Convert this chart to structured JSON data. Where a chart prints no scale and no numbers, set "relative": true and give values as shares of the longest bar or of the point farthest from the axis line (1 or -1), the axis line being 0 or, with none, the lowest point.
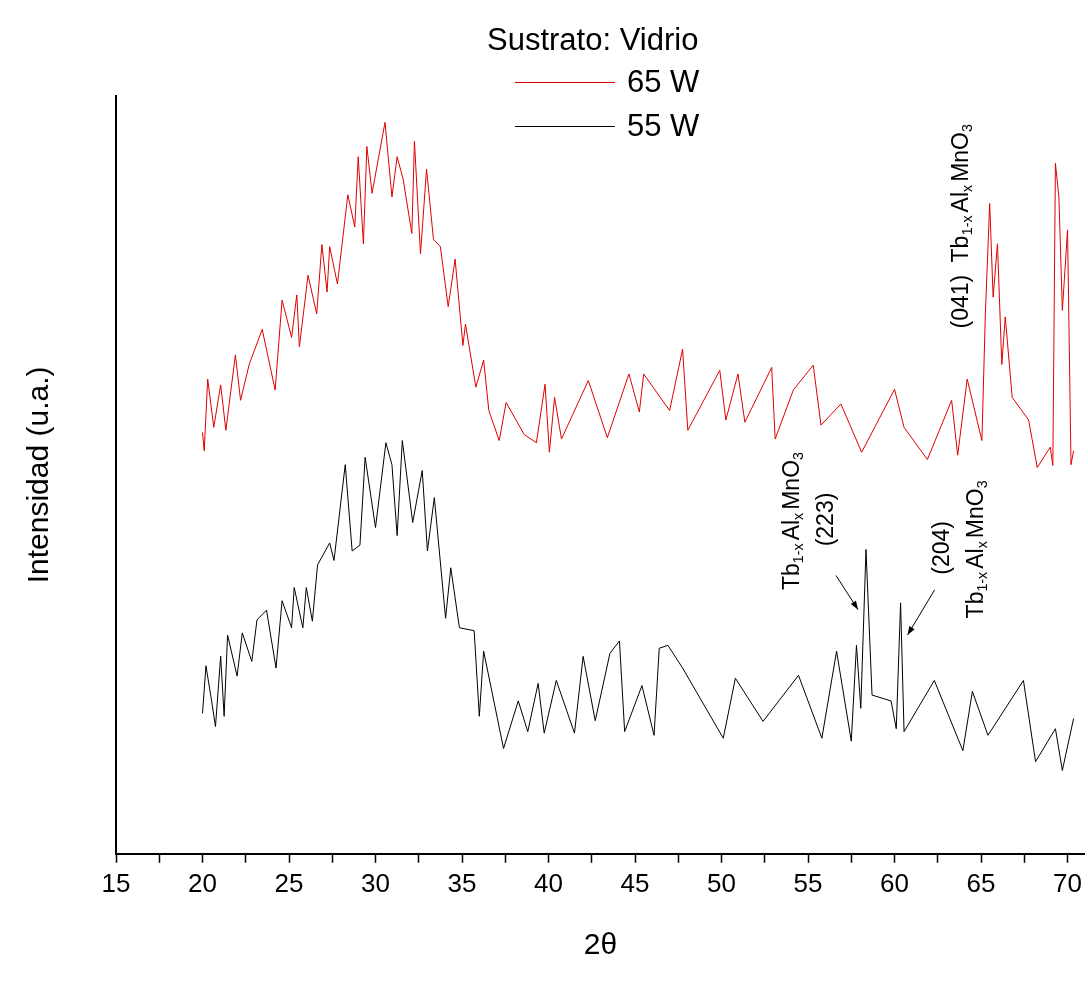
{
  "chart_data": {
    "type": "line",
    "relative": true,
    "xlabel": "2θ",
    "ylabel": "Intensidad (u.a.)",
    "legend_title": "Sustrato: Vidrio",
    "legend": "top",
    "grid": false,
    "marker": "none",
    "line_style": "solid",
    "xlim": [
      15,
      71
    ],
    "xticks": [
      15,
      {
        "value": 17.5,
        "label": null
      },
      20,
      {
        "value": 22.5,
        "label": null
      },
      25,
      {
        "value": 27.5,
        "label": null
      },
      30,
      {
        "value": 32.5,
        "label": null
      },
      35,
      {
        "value": 37.5,
        "label": null
      },
      40,
      {
        "value": 42.5,
        "label": null
      },
      45,
      {
        "value": 47.5,
        "label": null
      },
      50,
      {
        "value": 52.5,
        "label": null
      },
      55,
      {
        "value": 57.5,
        "label": null
      },
      60,
      {
        "value": 62.5,
        "label": null
      },
      65,
      {
        "value": 67.5,
        "label": null
      },
      70
    ],
    "annotations": [
      {
        "text": "(041)  Tb$_{1-x}$Al$_{x}$MnO$_{3}$",
        "x": 65.5,
        "y": 0.889
      },
      {
        "text": "(223)\nTb$_{1-x}$Al$_{x}$MnO$_{3}$",
        "x": 58.35,
        "y": 0.416
      },
      {
        "text": "(204)\nTb$_{1-x}$Al$_{x}$MnO$_{3}$",
        "x": 60.35,
        "y": 0.343
      }
    ],
    "series": [
      {
        "name": "65 W",
        "color": "#e00000",
        "x": [
          20.0,
          20.1,
          20.3,
          20.65,
          21.05,
          21.35,
          21.9,
          22.2,
          22.7,
          23.45,
          24.2,
          24.6,
          25.15,
          25.45,
          25.6,
          26.1,
          26.6,
          26.9,
          27.2,
          27.35,
          27.8,
          28.4,
          28.8,
          29.0,
          29.3,
          29.5,
          29.8,
          30.55,
          30.95,
          31.25,
          31.6,
          32.1,
          32.25,
          32.6,
          32.95,
          33.35,
          33.75,
          34.2,
          34.6,
          35.05,
          35.2,
          35.8,
          36.25,
          36.55,
          37.15,
          37.55,
          38.6,
          39.3,
          39.8,
          40.05,
          40.35,
          40.75,
          42.3,
          43.4,
          44.65,
          45.25,
          45.5,
          47.0,
          47.75,
          48.05,
          49.9,
          50.25,
          50.95,
          51.35,
          52.9,
          53.1,
          54.15,
          55.3,
          55.75,
          56.9,
          58.1,
          60.0,
          60.55,
          61.9,
          63.3,
          63.65,
          64.2,
          65.05,
          65.25,
          65.5,
          65.7,
          65.95,
          66.2,
          66.4,
          66.8,
          67.75,
          68.25,
          69.0,
          69.15,
          69.3,
          69.5,
          69.7,
          70.0,
          70.2,
          70.35
        ],
        "values": [
          0.576,
          0.551,
          0.649,
          0.583,
          0.641,
          0.579,
          0.682,
          0.62,
          0.669,
          0.717,
          0.634,
          0.757,
          0.706,
          0.764,
          0.693,
          0.791,
          0.738,
          0.833,
          0.768,
          0.83,
          0.779,
          0.901,
          0.857,
          0.953,
          0.834,
          0.967,
          0.903,
          1.0,
          0.898,
          0.953,
          0.922,
          0.848,
          0.974,
          0.82,
          0.936,
          0.84,
          0.83,
          0.748,
          0.813,
          0.695,
          0.724,
          0.638,
          0.675,
          0.606,
          0.565,
          0.617,
          0.573,
          0.562,
          0.642,
          0.549,
          0.624,
          0.567,
          0.647,
          0.569,
          0.656,
          0.604,
          0.656,
          0.606,
          0.69,
          0.579,
          0.661,
          0.593,
          0.656,
          0.59,
          0.665,
          0.567,
          0.634,
          0.668,
          0.586,
          0.615,
          0.549,
          0.635,
          0.583,
          0.539,
          0.62,
          0.545,
          0.649,
          0.565,
          0.738,
          0.889,
          0.761,
          0.834,
          0.669,
          0.734,
          0.624,
          0.593,
          0.528,
          0.556,
          0.531,
          0.944,
          0.898,
          0.743,
          0.853,
          0.532,
          0.551
        ]
      },
      {
        "name": "55 W",
        "color": "#000000",
        "x": [
          20.0,
          20.2,
          20.5,
          20.75,
          21.05,
          21.25,
          21.45,
          22.0,
          22.3,
          22.85,
          23.15,
          23.7,
          24.25,
          24.6,
          25.15,
          25.3,
          25.8,
          26.0,
          26.35,
          26.65,
          27.35,
          27.6,
          28.25,
          28.65,
          29.1,
          29.4,
          30.0,
          30.6,
          30.95,
          31.25,
          31.55,
          32.15,
          32.7,
          33.0,
          33.4,
          34.05,
          34.35,
          34.85,
          35.7,
          36.0,
          36.25,
          37.4,
          38.25,
          38.8,
          39.4,
          39.75,
          40.45,
          41.5,
          42.0,
          42.7,
          43.55,
          44.1,
          44.4,
          45.4,
          46.1,
          46.4,
          46.9,
          47.75,
          50.1,
          50.8,
          52.4,
          54.45,
          55.8,
          56.65,
          57.5,
          57.8,
          58.05,
          58.35,
          58.7,
          59.8,
          60.1,
          60.35,
          60.55,
          62.3,
          63.95,
          64.5,
          65.4,
          67.45,
          68.15,
          69.3,
          69.7,
          70.35
        ],
        "values": [
          0.192,
          0.257,
          0.213,
          0.174,
          0.27,
          0.188,
          0.299,
          0.243,
          0.302,
          0.263,
          0.32,
          0.333,
          0.254,
          0.346,
          0.309,
          0.364,
          0.309,
          0.364,
          0.318,
          0.395,
          0.425,
          0.401,
          0.532,
          0.414,
          0.422,
          0.542,
          0.446,
          0.562,
          0.532,
          0.435,
          0.565,
          0.453,
          0.524,
          0.414,
          0.487,
          0.322,
          0.391,
          0.309,
          0.305,
          0.188,
          0.277,
          0.144,
          0.209,
          0.167,
          0.233,
          0.165,
          0.237,
          0.165,
          0.27,
          0.182,
          0.274,
          0.291,
          0.167,
          0.23,
          0.162,
          0.281,
          0.285,
          0.254,
          0.158,
          0.24,
          0.181,
          0.244,
          0.158,
          0.277,
          0.154,
          0.285,
          0.199,
          0.416,
          0.217,
          0.209,
          0.171,
          0.343,
          0.167,
          0.237,
          0.141,
          0.222,
          0.162,
          0.237,
          0.126,
          0.171,
          0.114,
          0.185
        ]
      }
    ]
  }
}
